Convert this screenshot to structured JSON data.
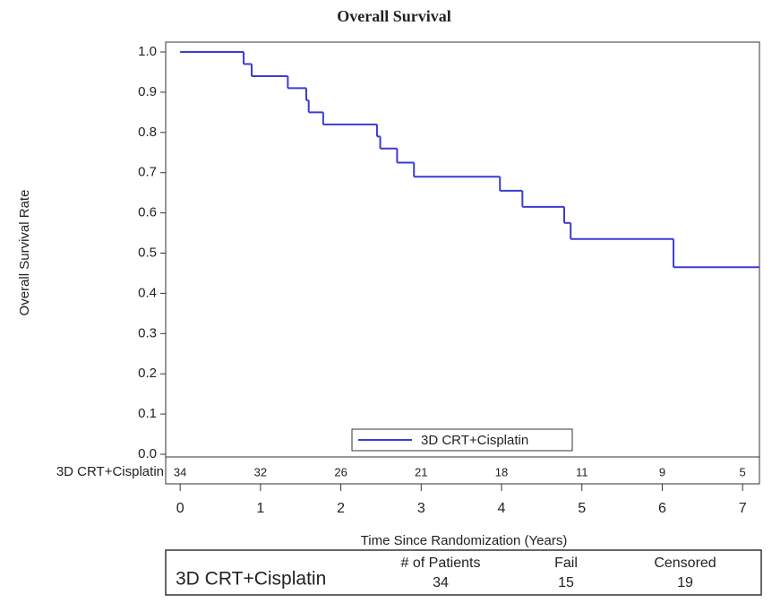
{
  "chart_data": {
    "type": "step",
    "title": "Overall Survival",
    "ylabel": "Overall Survival Rate",
    "xlabel": "Time Since Randomization (Years)",
    "xlim": [
      -0.18,
      7.21
    ],
    "xticks": [
      0,
      1,
      2,
      3,
      4,
      5,
      6,
      7
    ],
    "ylim": [
      0,
      1.0
    ],
    "yticks": [
      {
        "value": 0,
        "label": "0.0"
      },
      0.1,
      0.2,
      0.3,
      0.4,
      0.5,
      0.6,
      0.7,
      0.8,
      0.9,
      {
        "value": 1,
        "label": "1.0"
      }
    ],
    "legend": "bottom",
    "series": [
      {
        "name": "3D CRT+Cisplatin",
        "color": "#3b3bd6",
        "x": [
          0,
          0.79,
          0.89,
          1.34,
          1.57,
          1.6,
          1.78,
          2.45,
          2.49,
          2.7,
          2.91,
          3.98,
          4.26,
          4.78,
          4.86,
          6.14,
          7.21
        ],
        "values": [
          1.0,
          0.97,
          0.94,
          0.91,
          0.88,
          0.85,
          0.82,
          0.79,
          0.76,
          0.725,
          0.69,
          0.655,
          0.615,
          0.575,
          0.535,
          0.465,
          0.465
        ]
      }
    ],
    "at_risk": {
      "label": "3D CRT+Cisplatin",
      "x": [
        0,
        1,
        2,
        3,
        4,
        5,
        6,
        7
      ],
      "values": [
        34,
        32,
        26,
        21,
        18,
        11,
        9,
        5
      ]
    },
    "summary_table": {
      "label": "3D CRT+Cisplatin",
      "headers": [
        "# of Patients",
        "Fail",
        "Censored"
      ],
      "values": [
        34,
        15,
        19
      ]
    }
  }
}
